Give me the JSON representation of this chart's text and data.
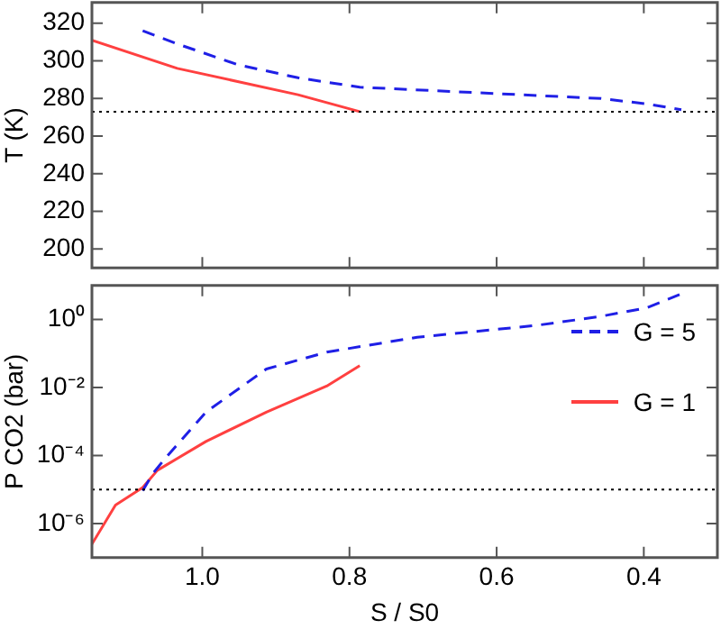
{
  "chart_data": [
    {
      "type": "line",
      "ylabel": "T (K)",
      "xlim": [
        1.15,
        0.3
      ],
      "xticks": [
        1,
        0.8,
        0.6,
        0.4
      ],
      "ylim": [
        190,
        331
      ],
      "yticks": [
        200,
        220,
        240,
        260,
        280,
        300,
        320
      ],
      "tick_labels": "y",
      "grid": false,
      "legend": false,
      "series": [
        {
          "color": "#1f1fe6",
          "line_style": "dashed",
          "x": [
            1.081,
            1.034,
            0.952,
            0.87,
            0.786,
            0.622,
            0.458,
            0.394,
            0.349
          ],
          "values": [
            316,
            309,
            298,
            291,
            286,
            283,
            280,
            277,
            274
          ]
        },
        {
          "color": "#ff4040",
          "line_style": "solid",
          "x": [
            1.15,
            1.034,
            0.952,
            0.87,
            0.786
          ],
          "values": [
            311,
            296,
            289,
            282,
            273
          ]
        }
      ],
      "ref_lines": [
        {
          "axis": "y",
          "value": 273,
          "color": "#000000",
          "line_style": "dotted"
        }
      ]
    },
    {
      "type": "line",
      "ylabel": "P CO2 (bar)",
      "xlabel": "S / S0",
      "log": "y",
      "xlim": [
        1.15,
        0.3
      ],
      "xticks": [
        {
          "value": 1,
          "label": "1.0"
        },
        {
          "value": 0.8,
          "label": "0.8"
        },
        {
          "value": 0.6,
          "label": "0.6"
        },
        {
          "value": 0.4,
          "label": "0.4"
        }
      ],
      "ylim": [
        1e-07,
        10
      ],
      "yticks": [
        {
          "value": 1,
          "label": "10⁰"
        },
        {
          "value": 0.01,
          "label": "10⁻²"
        },
        {
          "value": 0.0001,
          "label": "10⁻⁴"
        },
        {
          "value": 1e-06,
          "label": "10⁻⁶"
        }
      ],
      "grid": false,
      "legend": "right",
      "series": [
        {
          "name": "G = 5",
          "color": "#1f1fe6",
          "line_style": "dashed",
          "x": [
            1.081,
            1.067,
            1.051,
            0.995,
            0.913,
            0.831,
            0.708,
            0.544,
            0.462,
            0.396,
            0.347
          ],
          "values": [
            9.3e-06,
            3e-05,
            8e-05,
            0.0019,
            0.035,
            0.11,
            0.3,
            0.68,
            1.2,
            2.2,
            5.9
          ]
        },
        {
          "name": "G = 1",
          "color": "#ff4040",
          "line_style": "solid",
          "x": [
            1.15,
            1.118,
            1.081,
            1.061,
            0.995,
            0.913,
            0.831,
            0.786
          ],
          "values": [
            2.5e-07,
            3.5e-06,
            1.15e-05,
            3.7e-05,
            0.00026,
            0.0019,
            0.011,
            0.044
          ]
        }
      ],
      "ref_lines": [
        {
          "axis": "y",
          "value": 1e-05,
          "color": "#000000",
          "line_style": "dotted"
        }
      ]
    }
  ]
}
